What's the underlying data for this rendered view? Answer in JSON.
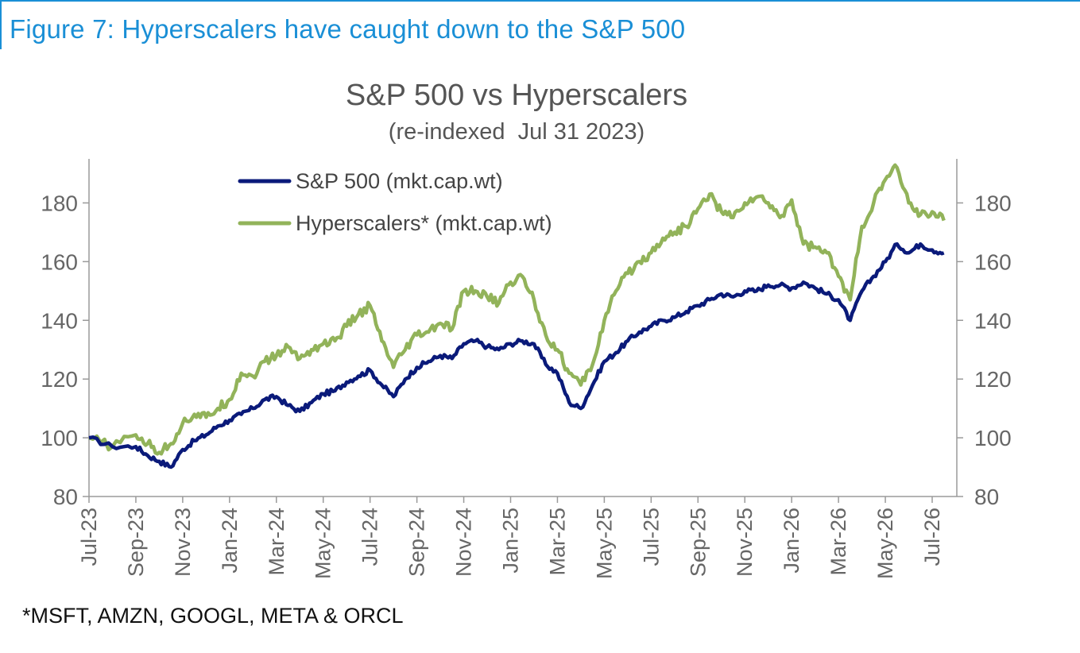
{
  "figure_title": "Figure 7: Hyperscalers have caught down to the S&P 500",
  "footnote": "*MSFT, AMZN, GOOGL, META & ORCL",
  "chart_data": {
    "type": "line",
    "title": "S&P 500 vs Hyperscalers",
    "subtitle": "(re-indexed  Jul 31 2023)",
    "x_tick_labels": [
      "Jul-23",
      "Sep-23",
      "Nov-23",
      "Jan-24",
      "Mar-24",
      "May-24",
      "Jul-24",
      "Sep-24",
      "Nov-24",
      "Jan-25",
      "Mar-25",
      "May-25",
      "Jul-25",
      "Sep-25",
      "Nov-25",
      "Jan-26",
      "Mar-26",
      "May-26",
      "Jul-26"
    ],
    "ylim": [
      80,
      195
    ],
    "y_ticks": [
      80,
      100,
      120,
      140,
      160,
      180
    ],
    "y_tick_labels": [
      "80",
      "100",
      "120",
      "140",
      "160",
      "180"
    ],
    "secondary_y_tick_labels": [
      "80",
      "100",
      "120",
      "140",
      "160",
      "180"
    ],
    "legend_position": "top-left",
    "series": [
      {
        "name": "S&P 500 (mkt.cap.wt)",
        "color": "#0a1a7a",
        "points": [
          [
            "Jul-23",
            100
          ],
          [
            "Aug-23",
            97
          ],
          [
            "Sep-23",
            97
          ],
          [
            "Sep-23",
            94
          ],
          [
            "Oct-23",
            92
          ],
          [
            "Oct-23",
            90
          ],
          [
            "Nov-23",
            96
          ],
          [
            "Nov-23",
            99
          ],
          [
            "Dec-23",
            101
          ],
          [
            "Dec-23",
            104
          ],
          [
            "Jan-24",
            106
          ],
          [
            "Jan-24",
            108
          ],
          [
            "Feb-24",
            110
          ],
          [
            "Feb-24",
            113
          ],
          [
            "Mar-24",
            114
          ],
          [
            "Mar-24",
            111
          ],
          [
            "Apr-24",
            109
          ],
          [
            "Apr-24",
            112
          ],
          [
            "May-24",
            115
          ],
          [
            "May-24",
            116
          ],
          [
            "Jun-24",
            119
          ],
          [
            "Jun-24",
            121
          ],
          [
            "Jul-24",
            123
          ],
          [
            "Jul-24",
            118
          ],
          [
            "Aug-24",
            114
          ],
          [
            "Aug-24",
            120
          ],
          [
            "Sep-24",
            124
          ],
          [
            "Sep-24",
            126
          ],
          [
            "Oct-24",
            128
          ],
          [
            "Oct-24",
            127
          ],
          [
            "Nov-24",
            132
          ],
          [
            "Nov-24",
            133
          ],
          [
            "Dec-24",
            131
          ],
          [
            "Dec-24",
            130
          ],
          [
            "Jan-25",
            132
          ],
          [
            "Jan-25",
            133
          ],
          [
            "Feb-25",
            132
          ],
          [
            "Feb-25",
            125
          ],
          [
            "Mar-25",
            122
          ],
          [
            "Mar-25",
            112
          ],
          [
            "Apr-25",
            110
          ],
          [
            "Apr-25",
            118
          ],
          [
            "May-25",
            126
          ],
          [
            "May-25",
            129
          ],
          [
            "Jun-25",
            133
          ],
          [
            "Jun-25",
            136
          ],
          [
            "Jul-25",
            138
          ],
          [
            "Jul-25",
            140
          ],
          [
            "Aug-25",
            141
          ],
          [
            "Aug-25",
            143
          ],
          [
            "Sep-25",
            145
          ],
          [
            "Sep-25",
            147
          ],
          [
            "Oct-25",
            149
          ],
          [
            "Oct-25",
            148
          ],
          [
            "Nov-25",
            150
          ],
          [
            "Nov-25",
            150
          ],
          [
            "Dec-25",
            152
          ],
          [
            "Dec-25",
            152
          ],
          [
            "Jan-26",
            151
          ],
          [
            "Jan-26",
            153
          ],
          [
            "Feb-26",
            151
          ],
          [
            "Feb-26",
            149
          ],
          [
            "Mar-26",
            147
          ],
          [
            "Mar-26",
            140
          ],
          [
            "Apr-26",
            150
          ],
          [
            "Apr-26",
            155
          ],
          [
            "May-26",
            160
          ],
          [
            "May-26",
            166
          ],
          [
            "Jun-26",
            163
          ],
          [
            "Jun-26",
            166
          ],
          [
            "Jul-26",
            164
          ],
          [
            "Jul-26",
            163
          ]
        ]
      },
      {
        "name": "Hyperscalers* (mkt.cap.wt)",
        "color": "#92b35a",
        "points": [
          [
            "Jul-23",
            100
          ],
          [
            "Aug-23",
            97
          ],
          [
            "Sep-23",
            101
          ],
          [
            "Sep-23",
            98
          ],
          [
            "Oct-23",
            95
          ],
          [
            "Oct-23",
            98
          ],
          [
            "Nov-23",
            105
          ],
          [
            "Nov-23",
            108
          ],
          [
            "Dec-23",
            107
          ],
          [
            "Dec-23",
            110
          ],
          [
            "Jan-24",
            113
          ],
          [
            "Jan-24",
            122
          ],
          [
            "Feb-24",
            121
          ],
          [
            "Feb-24",
            126
          ],
          [
            "Mar-24",
            128
          ],
          [
            "Mar-24",
            131
          ],
          [
            "Apr-24",
            127
          ],
          [
            "Apr-24",
            130
          ],
          [
            "May-24",
            132
          ],
          [
            "May-24",
            133
          ],
          [
            "Jun-24",
            138
          ],
          [
            "Jun-24",
            142
          ],
          [
            "Jul-24",
            145
          ],
          [
            "Jul-24",
            133
          ],
          [
            "Aug-24",
            124
          ],
          [
            "Aug-24",
            130
          ],
          [
            "Sep-24",
            135
          ],
          [
            "Sep-24",
            136
          ],
          [
            "Oct-24",
            139
          ],
          [
            "Oct-24",
            137
          ],
          [
            "Nov-24",
            150
          ],
          [
            "Nov-24",
            150
          ],
          [
            "Dec-24",
            148
          ],
          [
            "Dec-24",
            146
          ],
          [
            "Jan-25",
            153
          ],
          [
            "Jan-25",
            155
          ],
          [
            "Feb-25",
            147
          ],
          [
            "Feb-25",
            135
          ],
          [
            "Mar-25",
            130
          ],
          [
            "Mar-25",
            122
          ],
          [
            "Apr-25",
            118
          ],
          [
            "Apr-25",
            125
          ],
          [
            "May-25",
            140
          ],
          [
            "May-25",
            150
          ],
          [
            "Jun-25",
            156
          ],
          [
            "Jun-25",
            160
          ],
          [
            "Jul-25",
            163
          ],
          [
            "Jul-25",
            168
          ],
          [
            "Aug-25",
            170
          ],
          [
            "Aug-25",
            172
          ],
          [
            "Sep-25",
            178
          ],
          [
            "Sep-25",
            183
          ],
          [
            "Oct-25",
            177
          ],
          [
            "Oct-25",
            175
          ],
          [
            "Nov-25",
            180
          ],
          [
            "Nov-25",
            182
          ],
          [
            "Dec-25",
            180
          ],
          [
            "Dec-25",
            175
          ],
          [
            "Jan-26",
            181
          ],
          [
            "Jan-26",
            166
          ],
          [
            "Feb-26",
            165
          ],
          [
            "Feb-26",
            163
          ],
          [
            "Mar-26",
            155
          ],
          [
            "Mar-26",
            147
          ],
          [
            "Apr-26",
            172
          ],
          [
            "Apr-26",
            180
          ],
          [
            "May-26",
            188
          ],
          [
            "May-26",
            192
          ],
          [
            "Jun-26",
            180
          ],
          [
            "Jun-26",
            176
          ],
          [
            "Jul-26",
            177
          ],
          [
            "Jul-26",
            174
          ]
        ]
      }
    ]
  }
}
